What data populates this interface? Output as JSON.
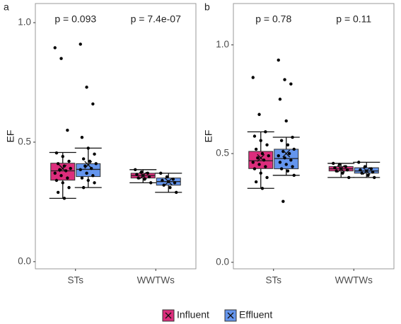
{
  "chart_data": [
    {
      "type": "box",
      "panel": "a",
      "ylabel": "EF",
      "categories": [
        "STs",
        "WWTWs"
      ],
      "annotations": [
        "p = 0.093",
        "p = 7.4e-07"
      ],
      "ylim": [
        -0.03,
        1.08
      ],
      "yticks": [
        {
          "value": 0,
          "label": "0.0"
        },
        {
          "value": 0.5,
          "label": "0.5"
        },
        {
          "value": 1,
          "label": "1.0"
        }
      ],
      "series": [
        {
          "name": "Influent",
          "color": "#dc2d7c",
          "boxes": [
            {
              "whislo": 0.265,
              "q1": 0.341,
              "med": 0.38,
              "q3": 0.412,
              "whishi": 0.457,
              "mean": 0.39,
              "points": [
                0.895,
                0.85,
                0.55,
                0.455,
                0.44,
                0.42,
                0.41,
                0.4,
                0.39,
                0.385,
                0.38,
                0.37,
                0.36,
                0.35,
                0.34,
                0.33,
                0.31,
                0.29,
                0.265
              ]
            },
            {
              "whislo": 0.33,
              "q1": 0.35,
              "med": 0.36,
              "q3": 0.37,
              "whishi": 0.385,
              "mean": 0.36,
              "points": [
                0.385,
                0.375,
                0.37,
                0.365,
                0.36,
                0.355,
                0.35,
                0.345,
                0.33
              ]
            }
          ]
        },
        {
          "name": "Effluent",
          "color": "#6495ed",
          "boxes": [
            {
              "whislo": 0.31,
              "q1": 0.356,
              "med": 0.386,
              "q3": 0.41,
              "whishi": 0.475,
              "mean": 0.405,
              "points": [
                0.91,
                0.73,
                0.66,
                0.52,
                0.475,
                0.45,
                0.43,
                0.42,
                0.41,
                0.4,
                0.39,
                0.385,
                0.37,
                0.36,
                0.35,
                0.34,
                0.33,
                0.31
              ]
            },
            {
              "whislo": 0.29,
              "q1": 0.32,
              "med": 0.335,
              "q3": 0.35,
              "whishi": 0.37,
              "mean": 0.335,
              "points": [
                0.37,
                0.355,
                0.345,
                0.34,
                0.335,
                0.33,
                0.32,
                0.31,
                0.29
              ]
            }
          ]
        }
      ]
    },
    {
      "type": "box",
      "panel": "b",
      "ylabel": "EF",
      "categories": [
        "STs",
        "WWTWs"
      ],
      "annotations": [
        "p = 0.78",
        "p = 0.11"
      ],
      "ylim": [
        -0.03,
        1.19
      ],
      "yticks": [
        {
          "value": 0,
          "label": "0.0"
        },
        {
          "value": 0.5,
          "label": "0.5"
        },
        {
          "value": 1,
          "label": "1.0"
        }
      ],
      "series": [
        {
          "name": "Influent",
          "color": "#dc2d7c",
          "boxes": [
            {
              "whislo": 0.34,
              "q1": 0.431,
              "med": 0.467,
              "q3": 0.51,
              "whishi": 0.6,
              "mean": 0.48,
              "points": [
                0.85,
                0.68,
                0.6,
                0.58,
                0.56,
                0.54,
                0.52,
                0.5,
                0.49,
                0.48,
                0.47,
                0.46,
                0.45,
                0.44,
                0.43,
                0.41,
                0.39,
                0.37,
                0.34
              ]
            },
            {
              "whislo": 0.39,
              "q1": 0.42,
              "med": 0.43,
              "q3": 0.44,
              "whishi": 0.455,
              "mean": 0.43,
              "points": [
                0.455,
                0.45,
                0.44,
                0.435,
                0.43,
                0.425,
                0.42,
                0.41,
                0.39
              ]
            }
          ]
        },
        {
          "name": "Effluent",
          "color": "#6495ed",
          "boxes": [
            {
              "whislo": 0.4,
              "q1": 0.43,
              "med": 0.477,
              "q3": 0.52,
              "whishi": 0.575,
              "mean": 0.5,
              "points": [
                0.93,
                0.84,
                0.82,
                0.75,
                0.65,
                0.575,
                0.56,
                0.54,
                0.52,
                0.51,
                0.5,
                0.49,
                0.48,
                0.47,
                0.46,
                0.45,
                0.44,
                0.43,
                0.42,
                0.4,
                0.28
              ]
            },
            {
              "whislo": 0.39,
              "q1": 0.41,
              "med": 0.42,
              "q3": 0.435,
              "whishi": 0.46,
              "mean": 0.42,
              "points": [
                0.46,
                0.44,
                0.43,
                0.425,
                0.42,
                0.415,
                0.41,
                0.4,
                0.39
              ]
            }
          ]
        }
      ]
    }
  ]
}
